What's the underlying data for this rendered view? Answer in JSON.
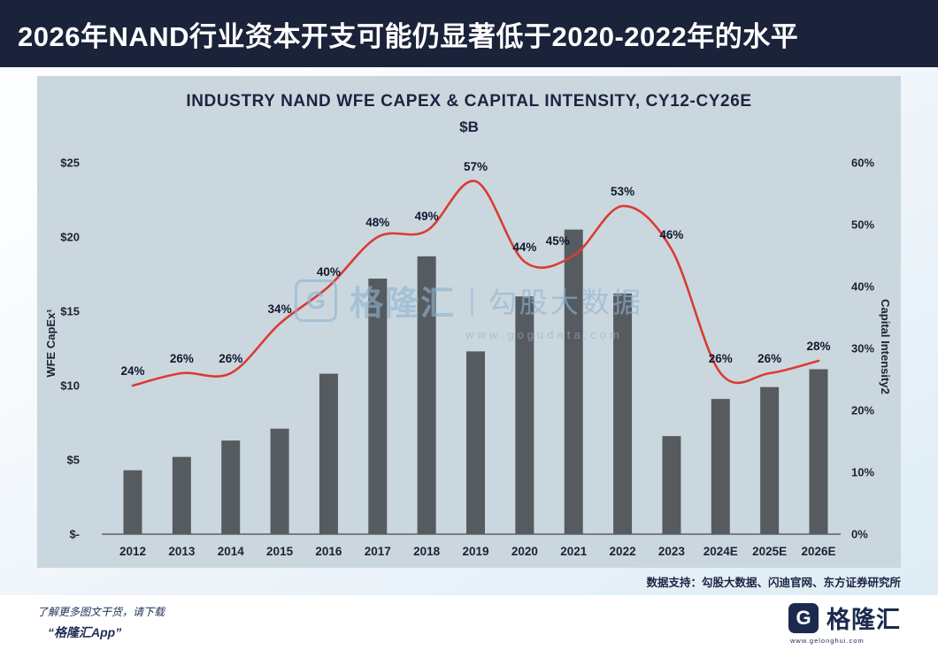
{
  "page": {
    "banner_title": "2026年NAND行业资本开支可能仍显著低于2020-2022年的水平",
    "source_note": "数据支持：勾股大数据、闪迪官网、东方证券研究所",
    "watermark": {
      "icon_letter": "G",
      "brand": "格隆汇",
      "divider": "|",
      "name": "勾股大数据",
      "url": "www.gogudata.com"
    },
    "footer": {
      "line1": "了解更多图文干货，请下载",
      "line2": "“格隆汇App”",
      "logo_letter": "G",
      "logo_text": "格隆汇",
      "logo_url": "www.gelonghui.com"
    }
  },
  "chart_data": {
    "type": "bar",
    "title": "INDUSTRY NAND WFE CAPEX & CAPITAL INTENSITY, CY12-CY26E",
    "subtitle": "$B",
    "categories": [
      "2012",
      "2013",
      "2014",
      "2015",
      "2016",
      "2017",
      "2018",
      "2019",
      "2020",
      "2021",
      "2022",
      "2023",
      "2024E",
      "2025E",
      "2026E"
    ],
    "series": [
      {
        "name": "WFE CapEx ($B)",
        "type": "bar",
        "color": "#565b60",
        "values": [
          4.3,
          5.2,
          6.3,
          7.1,
          10.8,
          17.2,
          18.7,
          12.3,
          16.0,
          20.5,
          16.2,
          6.6,
          9.1,
          9.9,
          11.1
        ]
      },
      {
        "name": "Capital Intensity (%)",
        "type": "line",
        "color": "#d93c34",
        "values": [
          24,
          26,
          26,
          34,
          40,
          48,
          49,
          57,
          44,
          45,
          53,
          46,
          26,
          26,
          28
        ],
        "labels": [
          "24%",
          "26%",
          "26%",
          "34%",
          "40%",
          "48%",
          "49%",
          "57%",
          "44%",
          "45%",
          "53%",
          "46%",
          "26%",
          "26%",
          "28%"
        ]
      }
    ],
    "left_axis": {
      "label": "WFE CapEx¹",
      "min": 0,
      "max": 25,
      "ticks": [
        "$25",
        "$20",
        "$15",
        "$10",
        "$5",
        "$-"
      ]
    },
    "right_axis": {
      "label": "Capital Intensity2",
      "min": 0,
      "max": 60,
      "ticks": [
        "60%",
        "50%",
        "40%",
        "30%",
        "20%",
        "10%",
        "0%"
      ]
    },
    "legend_position": "none",
    "grid": false
  }
}
